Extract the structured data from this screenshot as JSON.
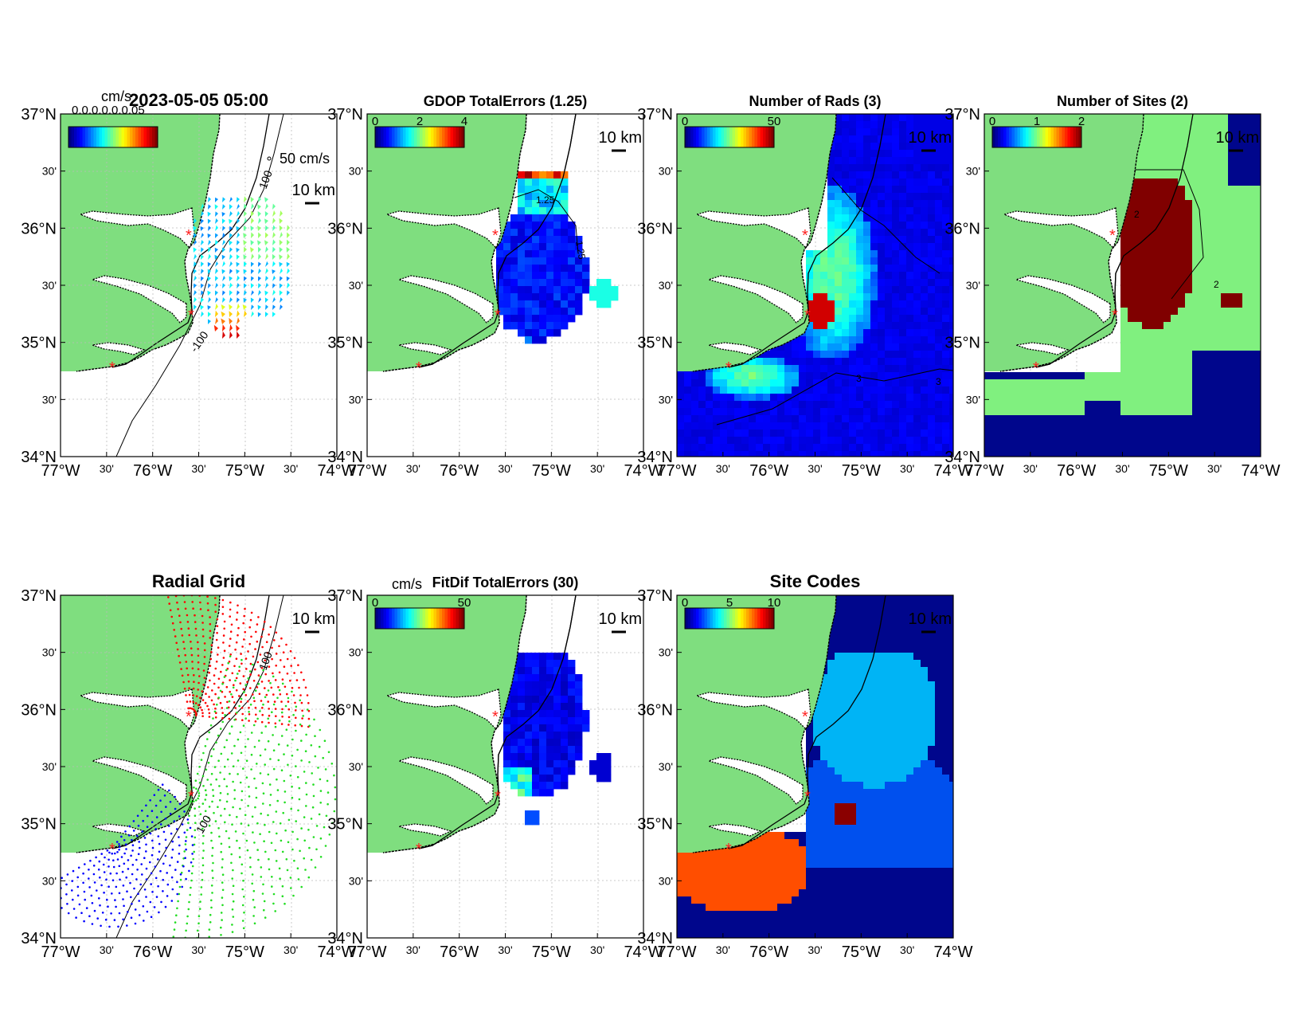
{
  "figure": {
    "panels": [
      {
        "key": "vec",
        "title": "2023-05-05 05:00",
        "type": "vectors",
        "colorbar": {
          "unit": "cm/s",
          "ticks": []
        },
        "scale_label": "50 cm/s",
        "scalebar": "10 km",
        "contour_labels": [
          "100",
          "-100"
        ],
        "overlap_label": "0.0.0.0.0.0.05"
      },
      {
        "key": "gdop",
        "title": "GDOP TotalErrors (1.25)",
        "type": "grid",
        "colorbar": {
          "unit": "",
          "ticks": [
            "0",
            "2",
            "4"
          ]
        },
        "scalebar": "10 km",
        "contour_labels": [
          "1.25",
          "1.25"
        ]
      },
      {
        "key": "nrads",
        "title": "Number of Rads (3)",
        "type": "grid",
        "colorbar": {
          "unit": "",
          "ticks": [
            "0",
            "50"
          ]
        },
        "scalebar": "10 km",
        "contour_labels": [
          "3",
          "3"
        ]
      },
      {
        "key": "nsites",
        "title": "Number of Sites (2)",
        "type": "grid",
        "colorbar": {
          "unit": "",
          "ticks": [
            "0",
            "1",
            "2"
          ]
        },
        "scalebar": "10 km",
        "contour_labels": [
          "2",
          "2"
        ]
      },
      {
        "key": "rgrid",
        "title": "Radial Grid",
        "type": "radial",
        "scalebar": "10 km",
        "contour_labels": [
          "100",
          "100"
        ]
      },
      {
        "key": "fitdif",
        "title": "FitDif TotalErrors (30)",
        "type": "grid",
        "colorbar": {
          "unit": "cm/s",
          "ticks": [
            "0",
            "50"
          ]
        },
        "scalebar": "10 km",
        "contour_labels": []
      },
      {
        "key": "sites",
        "title": "Site Codes",
        "type": "grid",
        "colorbar": {
          "unit": "",
          "ticks": [
            "0",
            "5",
            "10"
          ]
        },
        "scalebar": "10 km",
        "contour_labels": []
      }
    ],
    "axes": {
      "lat_ticks": [
        "37°N",
        "30'",
        "36°N",
        "30'",
        "35°N",
        "30'",
        "34°N"
      ],
      "lon_ticks": [
        "77°W",
        "30'",
        "76°W",
        "30'",
        "75°W",
        "30'",
        "74°W"
      ]
    },
    "colors": {
      "land": "#7fde7f",
      "ocean": "#ffffff",
      "coast": "#000000",
      "site_marker": "#ff2020",
      "grid_red": "#ff0000",
      "grid_green": "#22dd22",
      "grid_blue": "#0000ff",
      "gdop_blue": "#1233e0",
      "nrads_bg": "#0b1a9a",
      "nsites_navy": "#00068c",
      "nsites_green": "#80f07f",
      "nsites_red": "#800000",
      "sites_navy": "#00068c",
      "sites_blue": "#0050ee",
      "sites_cyan": "#00b4f5",
      "sites_orange": "#ff4e00",
      "sites_red": "#8a0000"
    }
  }
}
